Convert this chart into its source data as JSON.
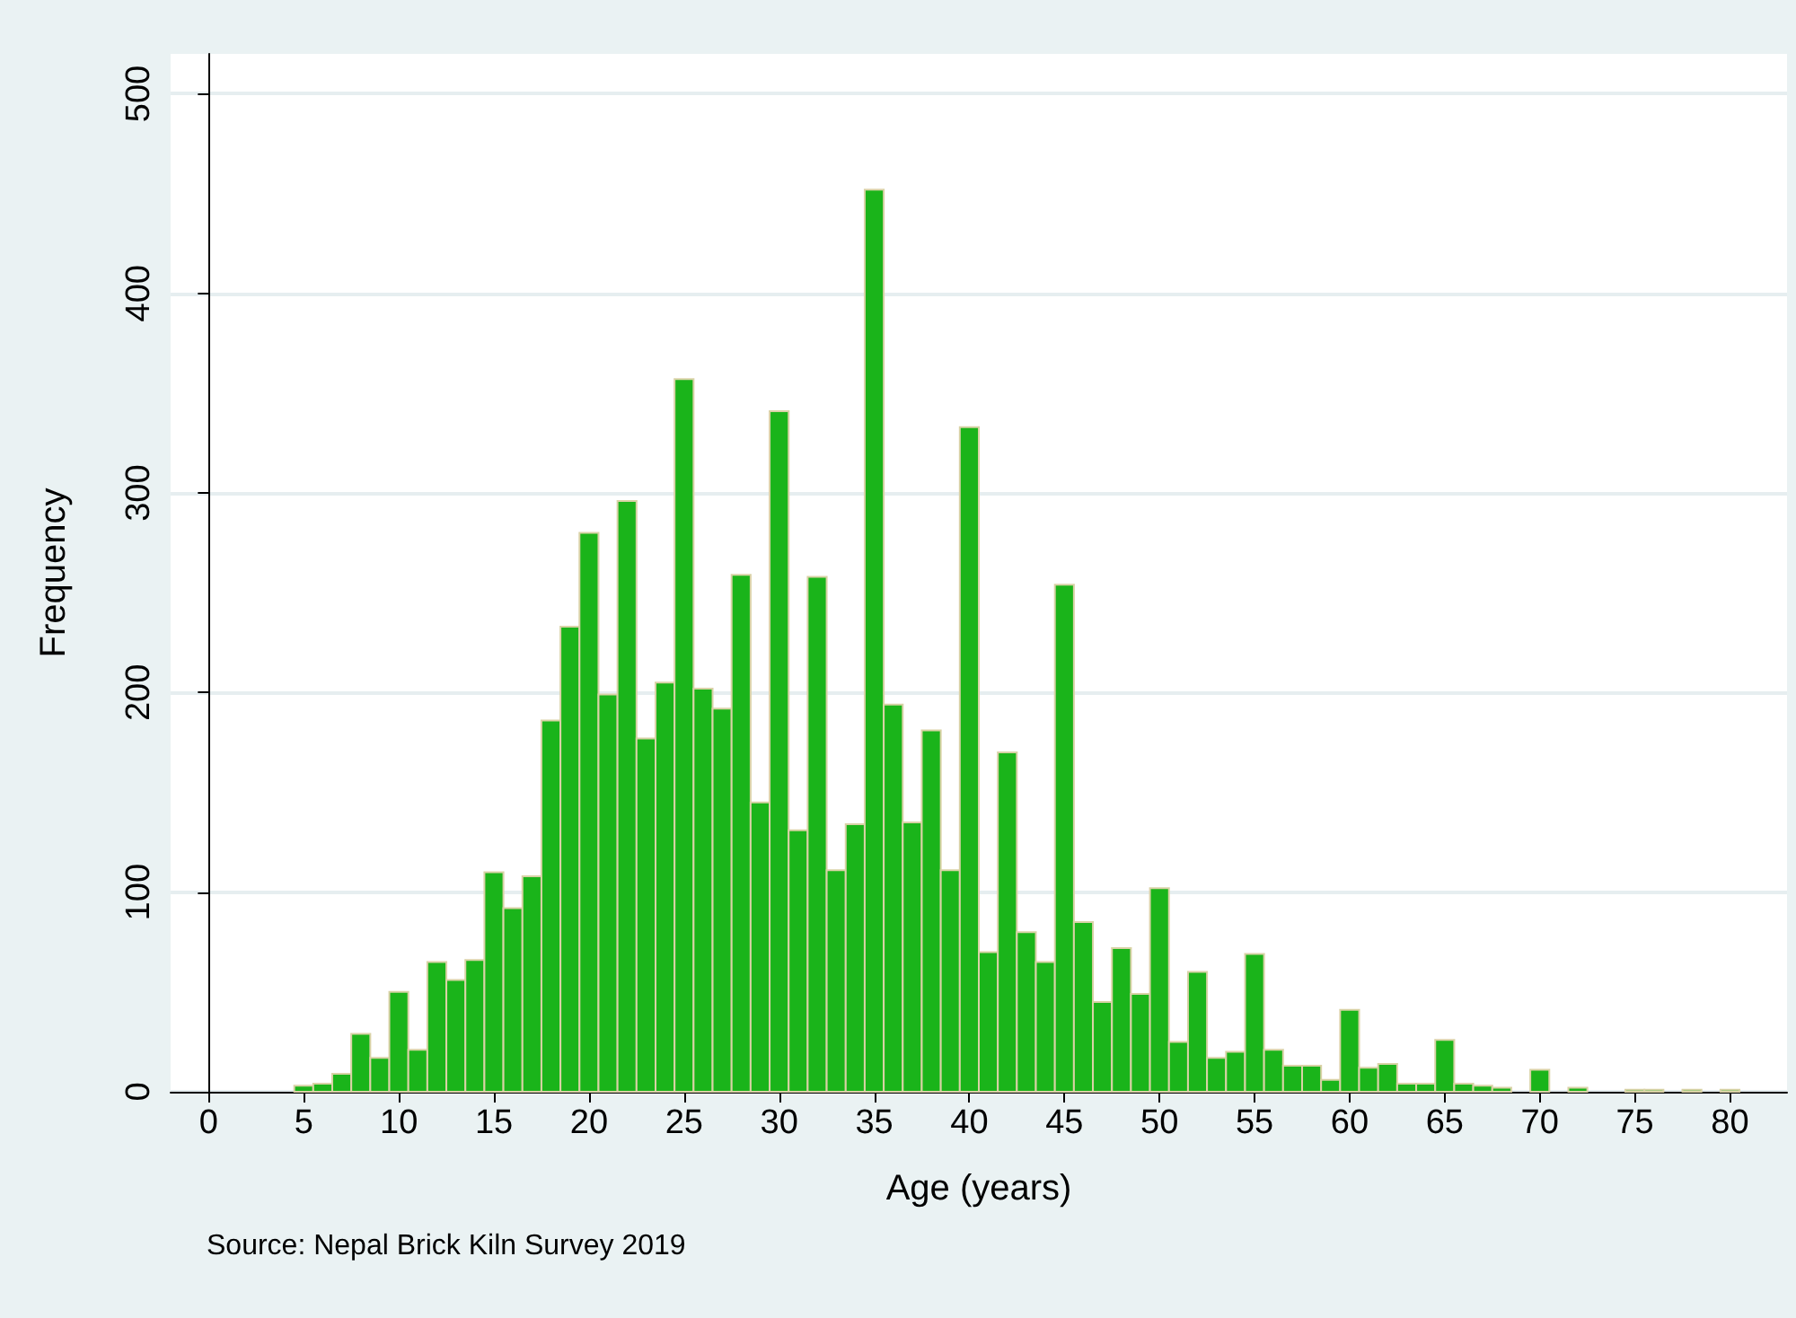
{
  "chart_data": {
    "type": "histogram",
    "xlabel": "Age (years)",
    "ylabel": "Frequency",
    "annotations": [
      "Source: Nepal Brick Kiln Survey 2019"
    ],
    "color": "#1ab41a",
    "bins": [
      4.5,
      5.5,
      6.5,
      7.5,
      8.5,
      9.5,
      10.5,
      11.5,
      12.5,
      13.5,
      14.5,
      15.5,
      16.5,
      17.5,
      18.5,
      19.5,
      20.5,
      21.5,
      22.5,
      23.5,
      24.5,
      25.5,
      26.5,
      27.5,
      28.5,
      29.5,
      30.5,
      31.5,
      32.5,
      33.5,
      34.5,
      35.5,
      36.5,
      37.5,
      38.5,
      39.5,
      40.5,
      41.5,
      42.5,
      43.5,
      44.5,
      45.5,
      46.5,
      47.5,
      48.5,
      49.5,
      50.5,
      51.5,
      52.5,
      53.5,
      54.5,
      55.5,
      56.5,
      57.5,
      58.5,
      59.5,
      60.5,
      61.5,
      62.5,
      63.5,
      64.5,
      65.5,
      66.5,
      67.5,
      68.5,
      69.5,
      70.5,
      71.5,
      72.5,
      73.5,
      74.5,
      75.5,
      76.5,
      77.5,
      78.5,
      79.5,
      80.5
    ],
    "values": [
      3,
      4,
      9,
      29,
      17,
      50,
      21,
      65,
      56,
      66,
      110,
      92,
      108,
      186,
      233,
      280,
      199,
      296,
      177,
      205,
      357,
      202,
      192,
      259,
      145,
      341,
      131,
      258,
      111,
      134,
      452,
      194,
      135,
      181,
      111,
      333,
      70,
      170,
      80,
      65,
      254,
      85,
      45,
      72,
      49,
      102,
      25,
      60,
      17,
      20,
      69,
      21,
      13,
      13,
      6,
      41,
      12,
      14,
      4,
      4,
      26,
      4,
      3,
      2,
      0,
      11,
      0,
      2,
      0,
      0,
      1,
      1,
      0,
      1,
      0,
      1
    ],
    "xlim": [
      -2,
      83
    ],
    "xticks": [
      0,
      5,
      10,
      15,
      20,
      25,
      30,
      35,
      40,
      45,
      50,
      55,
      60,
      65,
      70,
      75,
      80
    ],
    "ylim": [
      0,
      520
    ],
    "yticks": [
      0,
      100,
      200,
      300,
      400,
      500
    ],
    "grid": "y"
  }
}
